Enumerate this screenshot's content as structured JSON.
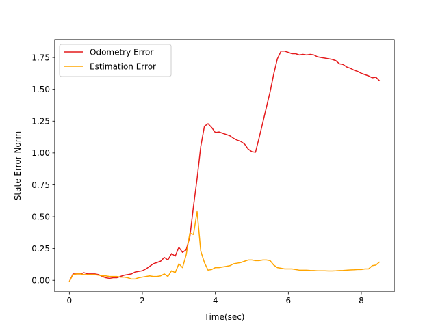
{
  "chart_data": {
    "type": "line",
    "title": "",
    "xlabel": "Time(sec)",
    "ylabel": "State Error Norm",
    "xlim": [
      -0.4,
      8.9
    ],
    "ylim": [
      -0.09,
      1.89
    ],
    "xticks": [
      0,
      2,
      4,
      6,
      8
    ],
    "xtick_labels": [
      "0",
      "2",
      "4",
      "6",
      "8"
    ],
    "yticks": [
      0.0,
      0.25,
      0.5,
      0.75,
      1.0,
      1.25,
      1.5,
      1.75
    ],
    "ytick_labels": [
      "0.00",
      "0.25",
      "0.50",
      "0.75",
      "1.00",
      "1.25",
      "1.50",
      "1.75"
    ],
    "grid": false,
    "legend_position": "upper-left",
    "series": [
      {
        "name": "Odometry Error",
        "color": "#e41a1c",
        "x": [
          0.0,
          0.1,
          0.2,
          0.3,
          0.4,
          0.5,
          0.6,
          0.7,
          0.8,
          0.9,
          1.0,
          1.1,
          1.2,
          1.3,
          1.4,
          1.5,
          1.6,
          1.7,
          1.8,
          1.9,
          2.0,
          2.1,
          2.2,
          2.3,
          2.4,
          2.5,
          2.6,
          2.7,
          2.8,
          2.9,
          3.0,
          3.1,
          3.2,
          3.3,
          3.4,
          3.5,
          3.6,
          3.7,
          3.8,
          3.9,
          4.0,
          4.1,
          4.2,
          4.3,
          4.4,
          4.5,
          4.6,
          4.7,
          4.8,
          4.9,
          5.0,
          5.1,
          5.2,
          5.3,
          5.4,
          5.5,
          5.6,
          5.7,
          5.8,
          5.9,
          6.0,
          6.1,
          6.2,
          6.3,
          6.4,
          6.5,
          6.6,
          6.7,
          6.8,
          6.9,
          7.0,
          7.1,
          7.2,
          7.3,
          7.4,
          7.5,
          7.6,
          7.7,
          7.8,
          7.9,
          8.0,
          8.1,
          8.2,
          8.3,
          8.4,
          8.5
        ],
        "y": [
          -0.01,
          0.05,
          0.05,
          0.05,
          0.06,
          0.05,
          0.05,
          0.05,
          0.045,
          0.03,
          0.02,
          0.015,
          0.02,
          0.02,
          0.03,
          0.04,
          0.045,
          0.05,
          0.065,
          0.07,
          0.075,
          0.09,
          0.11,
          0.13,
          0.14,
          0.15,
          0.18,
          0.16,
          0.21,
          0.19,
          0.26,
          0.22,
          0.24,
          0.34,
          0.58,
          0.8,
          1.05,
          1.21,
          1.23,
          1.2,
          1.16,
          1.165,
          1.155,
          1.145,
          1.135,
          1.115,
          1.1,
          1.09,
          1.07,
          1.03,
          1.01,
          1.005,
          1.12,
          1.24,
          1.36,
          1.48,
          1.62,
          1.74,
          1.8,
          1.8,
          1.79,
          1.78,
          1.78,
          1.77,
          1.775,
          1.77,
          1.775,
          1.77,
          1.755,
          1.75,
          1.745,
          1.74,
          1.735,
          1.725,
          1.7,
          1.695,
          1.675,
          1.665,
          1.65,
          1.64,
          1.625,
          1.615,
          1.605,
          1.59,
          1.595,
          1.565
        ]
      },
      {
        "name": "Estimation Error",
        "color": "#ffa500",
        "x": [
          0.0,
          0.1,
          0.2,
          0.3,
          0.4,
          0.5,
          0.6,
          0.7,
          0.8,
          0.9,
          1.0,
          1.1,
          1.2,
          1.3,
          1.4,
          1.5,
          1.6,
          1.7,
          1.8,
          1.9,
          2.0,
          2.1,
          2.2,
          2.3,
          2.4,
          2.5,
          2.6,
          2.7,
          2.8,
          2.9,
          3.0,
          3.1,
          3.2,
          3.3,
          3.4,
          3.5,
          3.6,
          3.7,
          3.8,
          3.9,
          4.0,
          4.1,
          4.2,
          4.3,
          4.4,
          4.5,
          4.6,
          4.7,
          4.8,
          4.9,
          5.0,
          5.1,
          5.2,
          5.3,
          5.4,
          5.5,
          5.6,
          5.7,
          5.8,
          5.9,
          6.0,
          6.1,
          6.2,
          6.3,
          6.4,
          6.5,
          6.6,
          6.7,
          6.8,
          6.9,
          7.0,
          7.1,
          7.2,
          7.3,
          7.4,
          7.5,
          7.6,
          7.7,
          7.8,
          7.9,
          8.0,
          8.1,
          8.2,
          8.3,
          8.4,
          8.5
        ],
        "y": [
          -0.01,
          0.045,
          0.05,
          0.05,
          0.045,
          0.045,
          0.045,
          0.045,
          0.04,
          0.035,
          0.035,
          0.03,
          0.03,
          0.03,
          0.025,
          0.025,
          0.02,
          0.01,
          0.01,
          0.02,
          0.025,
          0.03,
          0.035,
          0.03,
          0.03,
          0.035,
          0.05,
          0.03,
          0.075,
          0.06,
          0.13,
          0.1,
          0.2,
          0.37,
          0.36,
          0.54,
          0.23,
          0.14,
          0.08,
          0.085,
          0.1,
          0.1,
          0.105,
          0.11,
          0.115,
          0.13,
          0.135,
          0.14,
          0.15,
          0.16,
          0.16,
          0.155,
          0.155,
          0.16,
          0.16,
          0.155,
          0.12,
          0.1,
          0.095,
          0.09,
          0.09,
          0.09,
          0.085,
          0.08,
          0.08,
          0.08,
          0.078,
          0.077,
          0.075,
          0.075,
          0.075,
          0.074,
          0.074,
          0.075,
          0.077,
          0.078,
          0.08,
          0.082,
          0.083,
          0.085,
          0.085,
          0.09,
          0.09,
          0.115,
          0.12,
          0.145
        ]
      }
    ]
  }
}
